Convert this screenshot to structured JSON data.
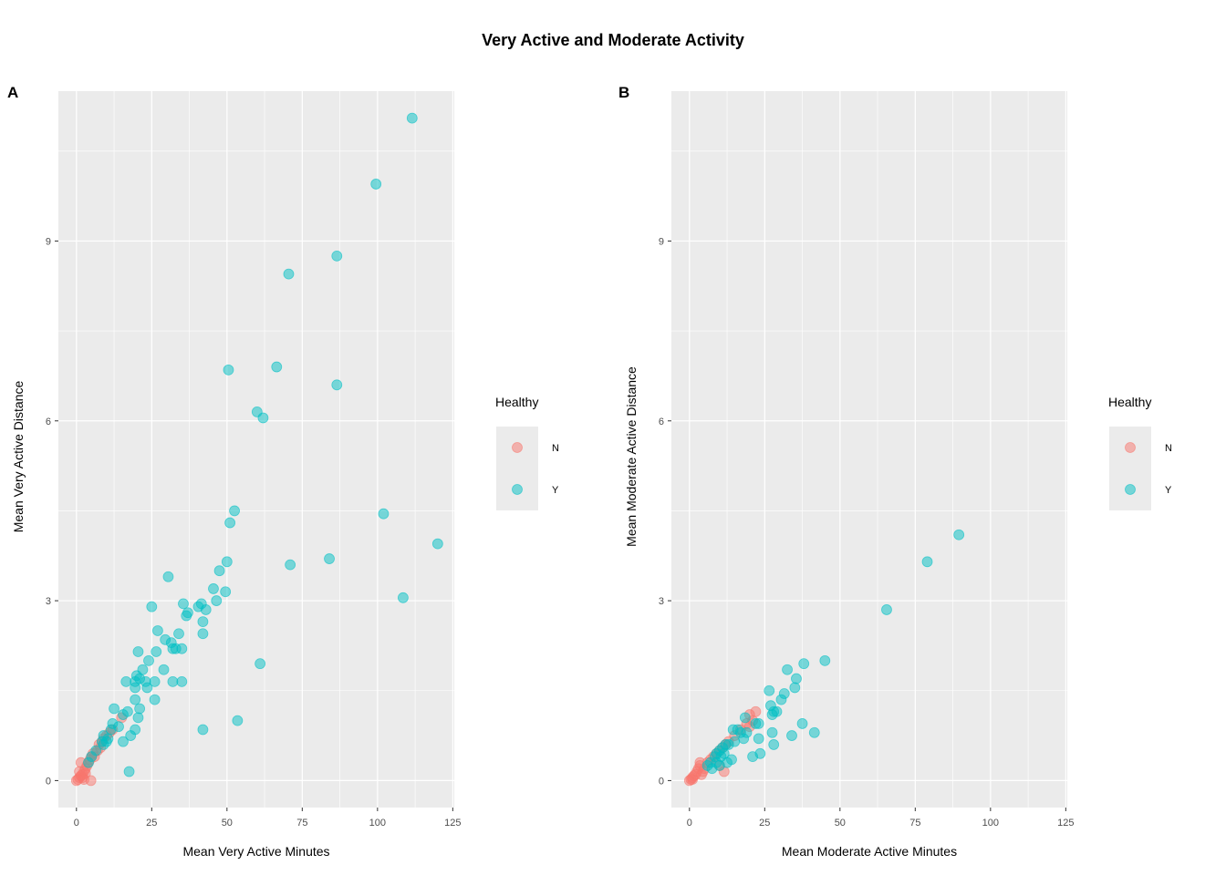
{
  "title": "Very Active and Moderate Activity",
  "colors": {
    "N": "#F8766D",
    "Y": "#00BFC4",
    "panel": "#EBEBEB",
    "grid": "#FFFFFF"
  },
  "chart_data": [
    {
      "type": "scatter",
      "tag": "A",
      "xlabel": "Mean Very Active Minutes",
      "ylabel": "Mean Very Active Distance",
      "xlim": [
        -6,
        125.5
      ],
      "ylim": [
        -0.45,
        11.5
      ],
      "xticks": [
        0,
        25,
        50,
        75,
        100,
        125
      ],
      "yticks": [
        0,
        3,
        6,
        9
      ],
      "grid": true,
      "legend": {
        "title": "Healthy",
        "position": "right",
        "entries": [
          "N",
          "Y"
        ]
      },
      "series": [
        {
          "name": "N",
          "points": [
            [
              0,
              0
            ],
            [
              0.5,
              0.02
            ],
            [
              1,
              0.05
            ],
            [
              1.5,
              0.08
            ],
            [
              2,
              0.1
            ],
            [
              2.5,
              0.15
            ],
            [
              3,
              0.2
            ],
            [
              3.5,
              0.25
            ],
            [
              4,
              0.3
            ],
            [
              4.5,
              0.35
            ],
            [
              5,
              0.4
            ],
            [
              5.5,
              0.45
            ],
            [
              6,
              0.4
            ],
            [
              7,
              0.5
            ],
            [
              7.5,
              0.6
            ],
            [
              8,
              0.55
            ],
            [
              8.5,
              0.65
            ],
            [
              9,
              0.7
            ],
            [
              10,
              0.75
            ],
            [
              11,
              0.8
            ],
            [
              12,
              0.85
            ],
            [
              15,
              1.05
            ],
            [
              1,
              0.15
            ],
            [
              2,
              0.05
            ],
            [
              3,
              0.12
            ],
            [
              4.8,
              0.0
            ],
            [
              1.5,
              0.3
            ],
            [
              2.5,
              0.02
            ]
          ]
        },
        {
          "name": "Y",
          "points": [
            [
              111.5,
              11.05
            ],
            [
              99.5,
              9.95
            ],
            [
              86.5,
              8.75
            ],
            [
              70.5,
              8.45
            ],
            [
              66.5,
              6.9
            ],
            [
              50.5,
              6.85
            ],
            [
              86.5,
              6.6
            ],
            [
              60,
              6.15
            ],
            [
              62,
              6.05
            ],
            [
              52.5,
              4.5
            ],
            [
              51,
              4.3
            ],
            [
              102,
              4.45
            ],
            [
              120,
              3.95
            ],
            [
              71,
              3.6
            ],
            [
              84,
              3.7
            ],
            [
              50,
              3.65
            ],
            [
              30.5,
              3.4
            ],
            [
              47.5,
              3.5
            ],
            [
              45.5,
              3.2
            ],
            [
              49.5,
              3.15
            ],
            [
              108.5,
              3.05
            ],
            [
              46.5,
              3.0
            ],
            [
              25,
              2.9
            ],
            [
              35.5,
              2.95
            ],
            [
              40.5,
              2.9
            ],
            [
              41.5,
              2.95
            ],
            [
              43,
              2.85
            ],
            [
              36.5,
              2.75
            ],
            [
              37,
              2.8
            ],
            [
              42,
              2.65
            ],
            [
              27,
              2.5
            ],
            [
              34,
              2.45
            ],
            [
              42,
              2.45
            ],
            [
              29.5,
              2.35
            ],
            [
              31.5,
              2.3
            ],
            [
              32,
              2.2
            ],
            [
              33,
              2.2
            ],
            [
              35,
              2.2
            ],
            [
              20.5,
              2.15
            ],
            [
              26.5,
              2.15
            ],
            [
              24,
              2.0
            ],
            [
              29,
              1.85
            ],
            [
              22,
              1.85
            ],
            [
              61,
              1.95
            ],
            [
              20,
              1.75
            ],
            [
              21,
              1.7
            ],
            [
              19.5,
              1.65
            ],
            [
              23,
              1.65
            ],
            [
              26,
              1.65
            ],
            [
              32,
              1.65
            ],
            [
              35,
              1.65
            ],
            [
              16.5,
              1.65
            ],
            [
              23.5,
              1.55
            ],
            [
              19.5,
              1.55
            ],
            [
              19.5,
              1.35
            ],
            [
              26,
              1.35
            ],
            [
              12.5,
              1.2
            ],
            [
              21,
              1.2
            ],
            [
              17,
              1.15
            ],
            [
              15.5,
              1.1
            ],
            [
              20.5,
              1.05
            ],
            [
              12,
              0.95
            ],
            [
              14,
              0.9
            ],
            [
              19.5,
              0.85
            ],
            [
              11.5,
              0.85
            ],
            [
              42,
              0.85
            ],
            [
              53.5,
              1.0
            ],
            [
              9,
              0.75
            ],
            [
              18,
              0.75
            ],
            [
              10.5,
              0.7
            ],
            [
              15.5,
              0.65
            ],
            [
              10,
              0.65
            ],
            [
              9,
              0.6
            ],
            [
              4,
              0.3
            ],
            [
              5,
              0.4
            ],
            [
              6.5,
              0.5
            ],
            [
              17.5,
              0.15
            ],
            [
              8.5,
              0.65
            ]
          ]
        }
      ]
    },
    {
      "type": "scatter",
      "tag": "B",
      "xlabel": "Mean Moderate Active Minutes",
      "ylabel": "Mean Moderate Active Distance",
      "xlim": [
        -6,
        125.5
      ],
      "ylim": [
        -0.45,
        11.5
      ],
      "xticks": [
        0,
        25,
        50,
        75,
        100,
        125
      ],
      "yticks": [
        0,
        3,
        6,
        9
      ],
      "grid": true,
      "legend": {
        "title": "Healthy",
        "position": "right",
        "entries": [
          "N",
          "Y"
        ]
      },
      "series": [
        {
          "name": "N",
          "points": [
            [
              0,
              0
            ],
            [
              0.5,
              0.02
            ],
            [
              1,
              0.05
            ],
            [
              1.5,
              0.08
            ],
            [
              2,
              0.1
            ],
            [
              2.5,
              0.15
            ],
            [
              3,
              0.2
            ],
            [
              3.5,
              0.25
            ],
            [
              4,
              0.1
            ],
            [
              4.5,
              0.15
            ],
            [
              5,
              0.2
            ],
            [
              6,
              0.3
            ],
            [
              7,
              0.35
            ],
            [
              8,
              0.4
            ],
            [
              9,
              0.45
            ],
            [
              10,
              0.5
            ],
            [
              11,
              0.55
            ],
            [
              12,
              0.6
            ],
            [
              13,
              0.65
            ],
            [
              15,
              0.75
            ],
            [
              17,
              0.85
            ],
            [
              19,
              0.95
            ],
            [
              20,
              1.1
            ],
            [
              22,
              1.15
            ],
            [
              21,
              1.0
            ],
            [
              20,
              0.9
            ],
            [
              11.5,
              0.15
            ],
            [
              10,
              0.25
            ],
            [
              3.5,
              0.3
            ],
            [
              1,
              0.02
            ]
          ]
        },
        {
          "name": "Y",
          "points": [
            [
              89.5,
              4.1
            ],
            [
              79,
              3.65
            ],
            [
              65.5,
              2.85
            ],
            [
              45,
              2.0
            ],
            [
              38,
              1.95
            ],
            [
              32.5,
              1.85
            ],
            [
              35.5,
              1.7
            ],
            [
              26.5,
              1.5
            ],
            [
              31.5,
              1.45
            ],
            [
              35,
              1.55
            ],
            [
              30.5,
              1.35
            ],
            [
              27,
              1.25
            ],
            [
              28,
              1.15
            ],
            [
              29,
              1.15
            ],
            [
              27.5,
              1.1
            ],
            [
              18.5,
              1.05
            ],
            [
              23,
              0.95
            ],
            [
              22,
              0.95
            ],
            [
              37.5,
              0.95
            ],
            [
              14.5,
              0.85
            ],
            [
              16,
              0.85
            ],
            [
              17,
              0.8
            ],
            [
              19,
              0.8
            ],
            [
              27.5,
              0.8
            ],
            [
              41.5,
              0.8
            ],
            [
              34,
              0.75
            ],
            [
              18,
              0.7
            ],
            [
              23,
              0.7
            ],
            [
              15,
              0.65
            ],
            [
              13,
              0.6
            ],
            [
              12,
              0.6
            ],
            [
              11,
              0.55
            ],
            [
              10,
              0.5
            ],
            [
              9,
              0.45
            ],
            [
              11.5,
              0.45
            ],
            [
              8.5,
              0.4
            ],
            [
              10.5,
              0.4
            ],
            [
              21,
              0.4
            ],
            [
              23.5,
              0.45
            ],
            [
              28,
              0.6
            ],
            [
              14,
              0.35
            ],
            [
              9,
              0.3
            ],
            [
              12.5,
              0.3
            ],
            [
              7,
              0.3
            ],
            [
              6,
              0.25
            ],
            [
              10,
              0.25
            ],
            [
              7.5,
              0.2
            ]
          ]
        }
      ]
    }
  ]
}
